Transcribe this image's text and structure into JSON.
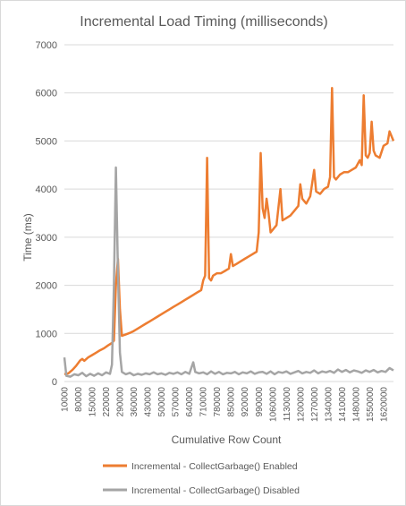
{
  "chart_data": {
    "type": "line",
    "title": "Incremental Load Timing (milliseconds)",
    "xlabel": "Cumulative Row Count",
    "ylabel": "Time (ms)",
    "ylim": [
      0,
      7000
    ],
    "yticks": [
      "0",
      "1000",
      "2000",
      "3000",
      "4000",
      "5000",
      "6000",
      "7000"
    ],
    "xticks": [
      "10000",
      "80000",
      "150000",
      "220000",
      "290000",
      "360000",
      "430000",
      "500000",
      "570000",
      "640000",
      "710000",
      "780000",
      "850000",
      "920000",
      "990000",
      "1060000",
      "1130000",
      "1200000",
      "1270000",
      "1340000",
      "1410000",
      "1480000",
      "1550000",
      "1620000"
    ],
    "grid": true,
    "legend_position": "bottom",
    "series": [
      {
        "name": "Incremental - CollectGarbage() Enabled",
        "color": "#ed7d31",
        "points": [
          [
            10000,
            150
          ],
          [
            30000,
            170
          ],
          [
            50000,
            240
          ],
          [
            70000,
            330
          ],
          [
            90000,
            440
          ],
          [
            100000,
            470
          ],
          [
            110000,
            430
          ],
          [
            130000,
            500
          ],
          [
            150000,
            550
          ],
          [
            170000,
            600
          ],
          [
            190000,
            650
          ],
          [
            210000,
            690
          ],
          [
            230000,
            750
          ],
          [
            250000,
            800
          ],
          [
            260000,
            850
          ],
          [
            270000,
            2000
          ],
          [
            280000,
            2550
          ],
          [
            290000,
            1500
          ],
          [
            300000,
            950
          ],
          [
            320000,
            980
          ],
          [
            340000,
            1010
          ],
          [
            360000,
            1050
          ],
          [
            380000,
            1100
          ],
          [
            400000,
            1150
          ],
          [
            420000,
            1200
          ],
          [
            440000,
            1250
          ],
          [
            460000,
            1300
          ],
          [
            480000,
            1350
          ],
          [
            500000,
            1400
          ],
          [
            520000,
            1450
          ],
          [
            540000,
            1500
          ],
          [
            560000,
            1550
          ],
          [
            580000,
            1600
          ],
          [
            600000,
            1650
          ],
          [
            620000,
            1700
          ],
          [
            640000,
            1750
          ],
          [
            660000,
            1800
          ],
          [
            680000,
            1850
          ],
          [
            700000,
            1900
          ],
          [
            710000,
            2100
          ],
          [
            720000,
            2200
          ],
          [
            730000,
            4650
          ],
          [
            740000,
            2150
          ],
          [
            750000,
            2100
          ],
          [
            760000,
            2200
          ],
          [
            780000,
            2250
          ],
          [
            800000,
            2250
          ],
          [
            820000,
            2300
          ],
          [
            840000,
            2350
          ],
          [
            850000,
            2650
          ],
          [
            860000,
            2400
          ],
          [
            880000,
            2450
          ],
          [
            900000,
            2500
          ],
          [
            920000,
            2550
          ],
          [
            940000,
            2600
          ],
          [
            960000,
            2650
          ],
          [
            980000,
            2700
          ],
          [
            990000,
            3100
          ],
          [
            1000000,
            4750
          ],
          [
            1010000,
            3600
          ],
          [
            1020000,
            3400
          ],
          [
            1030000,
            3800
          ],
          [
            1040000,
            3500
          ],
          [
            1050000,
            3100
          ],
          [
            1060000,
            3150
          ],
          [
            1080000,
            3250
          ],
          [
            1100000,
            4000
          ],
          [
            1110000,
            3350
          ],
          [
            1130000,
            3400
          ],
          [
            1150000,
            3450
          ],
          [
            1170000,
            3550
          ],
          [
            1190000,
            3650
          ],
          [
            1200000,
            4100
          ],
          [
            1210000,
            3800
          ],
          [
            1230000,
            3700
          ],
          [
            1250000,
            3850
          ],
          [
            1270000,
            4400
          ],
          [
            1280000,
            3950
          ],
          [
            1300000,
            3900
          ],
          [
            1320000,
            4000
          ],
          [
            1340000,
            4050
          ],
          [
            1350000,
            4250
          ],
          [
            1360000,
            6100
          ],
          [
            1370000,
            4250
          ],
          [
            1380000,
            4200
          ],
          [
            1400000,
            4300
          ],
          [
            1420000,
            4350
          ],
          [
            1440000,
            4350
          ],
          [
            1460000,
            4400
          ],
          [
            1480000,
            4450
          ],
          [
            1500000,
            4600
          ],
          [
            1510000,
            4500
          ],
          [
            1520000,
            5950
          ],
          [
            1530000,
            4700
          ],
          [
            1540000,
            4650
          ],
          [
            1550000,
            4750
          ],
          [
            1560000,
            5400
          ],
          [
            1570000,
            4800
          ],
          [
            1580000,
            4700
          ],
          [
            1600000,
            4650
          ],
          [
            1620000,
            4900
          ],
          [
            1640000,
            4950
          ],
          [
            1650000,
            5200
          ],
          [
            1670000,
            5000
          ]
        ]
      },
      {
        "name": "Incremental - CollectGarbage() Disabled",
        "color": "#a5a5a5",
        "points": [
          [
            10000,
            500
          ],
          [
            20000,
            120
          ],
          [
            40000,
            100
          ],
          [
            60000,
            150
          ],
          [
            80000,
            130
          ],
          [
            100000,
            180
          ],
          [
            120000,
            110
          ],
          [
            140000,
            160
          ],
          [
            160000,
            120
          ],
          [
            180000,
            170
          ],
          [
            200000,
            130
          ],
          [
            220000,
            190
          ],
          [
            240000,
            160
          ],
          [
            250000,
            350
          ],
          [
            260000,
            2000
          ],
          [
            270000,
            4450
          ],
          [
            280000,
            2300
          ],
          [
            290000,
            600
          ],
          [
            300000,
            200
          ],
          [
            320000,
            150
          ],
          [
            340000,
            180
          ],
          [
            360000,
            130
          ],
          [
            380000,
            160
          ],
          [
            400000,
            140
          ],
          [
            420000,
            170
          ],
          [
            440000,
            150
          ],
          [
            460000,
            190
          ],
          [
            480000,
            150
          ],
          [
            500000,
            170
          ],
          [
            520000,
            140
          ],
          [
            540000,
            180
          ],
          [
            560000,
            160
          ],
          [
            580000,
            190
          ],
          [
            600000,
            150
          ],
          [
            620000,
            200
          ],
          [
            640000,
            160
          ],
          [
            660000,
            400
          ],
          [
            670000,
            200
          ],
          [
            690000,
            170
          ],
          [
            710000,
            190
          ],
          [
            730000,
            150
          ],
          [
            750000,
            210
          ],
          [
            770000,
            160
          ],
          [
            790000,
            200
          ],
          [
            810000,
            150
          ],
          [
            830000,
            180
          ],
          [
            850000,
            170
          ],
          [
            870000,
            200
          ],
          [
            890000,
            150
          ],
          [
            910000,
            190
          ],
          [
            930000,
            170
          ],
          [
            950000,
            210
          ],
          [
            970000,
            160
          ],
          [
            990000,
            190
          ],
          [
            1010000,
            200
          ],
          [
            1030000,
            160
          ],
          [
            1050000,
            210
          ],
          [
            1070000,
            150
          ],
          [
            1090000,
            200
          ],
          [
            1110000,
            180
          ],
          [
            1130000,
            210
          ],
          [
            1150000,
            160
          ],
          [
            1170000,
            190
          ],
          [
            1190000,
            220
          ],
          [
            1210000,
            170
          ],
          [
            1230000,
            200
          ],
          [
            1250000,
            180
          ],
          [
            1270000,
            230
          ],
          [
            1290000,
            170
          ],
          [
            1310000,
            210
          ],
          [
            1330000,
            190
          ],
          [
            1350000,
            220
          ],
          [
            1370000,
            180
          ],
          [
            1390000,
            250
          ],
          [
            1410000,
            200
          ],
          [
            1430000,
            240
          ],
          [
            1450000,
            190
          ],
          [
            1470000,
            230
          ],
          [
            1490000,
            210
          ],
          [
            1510000,
            180
          ],
          [
            1530000,
            230
          ],
          [
            1550000,
            200
          ],
          [
            1570000,
            240
          ],
          [
            1590000,
            190
          ],
          [
            1610000,
            220
          ],
          [
            1630000,
            200
          ],
          [
            1650000,
            280
          ],
          [
            1670000,
            230
          ]
        ]
      }
    ]
  }
}
